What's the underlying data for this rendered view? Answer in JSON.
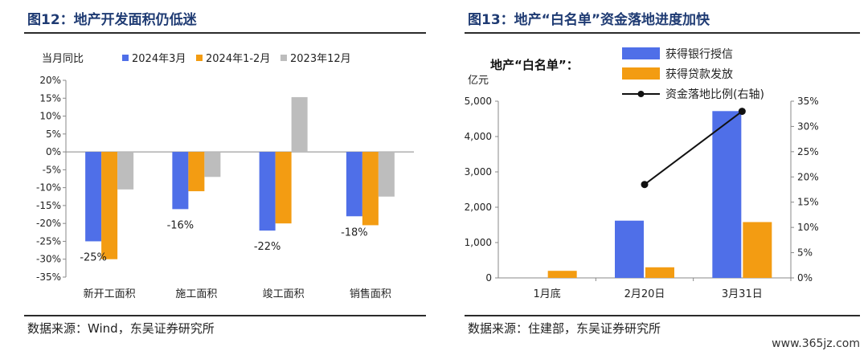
{
  "left": {
    "title": "图12：地产开发面积仍低迷",
    "source": "数据来源：Wind，东吴证券研究所",
    "chart_data": {
      "type": "bar",
      "ylabel": "当月同比",
      "categories": [
        "新开工面积",
        "施工面积",
        "竣工面积",
        "销售面积"
      ],
      "series": [
        {
          "name": "2024年3月",
          "values": [
            -25,
            -16,
            -22,
            -18
          ],
          "color": "#4f6fe8"
        },
        {
          "name": "2024年1-2月",
          "values": [
            -30,
            -11,
            -20,
            -20.5
          ],
          "color": "#f39c12"
        },
        {
          "name": "2023年12月",
          "values": [
            -10.5,
            -7,
            15.3,
            -12.5
          ],
          "color": "#bdbdbd"
        }
      ],
      "data_labels": [
        "-25%",
        "-16%",
        "-22%",
        "-18%"
      ],
      "ylim": [
        -35,
        20
      ],
      "yticks": [
        "20%",
        "15%",
        "10%",
        "5%",
        "0%",
        "-5%",
        "-10%",
        "-15%",
        "-20%",
        "-25%",
        "-30%",
        "-35%"
      ],
      "grid": false,
      "legend": "top"
    }
  },
  "right": {
    "title": "图13：地产“白名单”资金落地进度加快",
    "source": "数据来源：住建部，东吴证券研究所",
    "chart_data": {
      "type": "bar",
      "title": "地产“白名单”：",
      "ylabel": "亿元",
      "categories": [
        "1月底",
        "2月20日",
        "3月31日"
      ],
      "series": [
        {
          "name": "获得银行授信",
          "values": [
            0,
            1620,
            4720
          ],
          "color": "#4f6fe8",
          "kind": "bar"
        },
        {
          "name": "获得贷款发放",
          "values": [
            200,
            300,
            1580
          ],
          "color": "#f39c12",
          "kind": "bar"
        },
        {
          "name": "资金落地比例(右轴)",
          "values": [
            null,
            18.5,
            33
          ],
          "color": "#111111",
          "kind": "line"
        }
      ],
      "ylim": [
        0,
        5000
      ],
      "yticks": [
        "0",
        "1,000",
        "2,000",
        "3,000",
        "4,000",
        "5,000"
      ],
      "y2lim": [
        0,
        35
      ],
      "y2ticks": [
        "0%",
        "5%",
        "10%",
        "15%",
        "20%",
        "25%",
        "30%",
        "35%"
      ],
      "grid": false,
      "legend": "top-right"
    }
  },
  "watermark": "www.365jz.com"
}
